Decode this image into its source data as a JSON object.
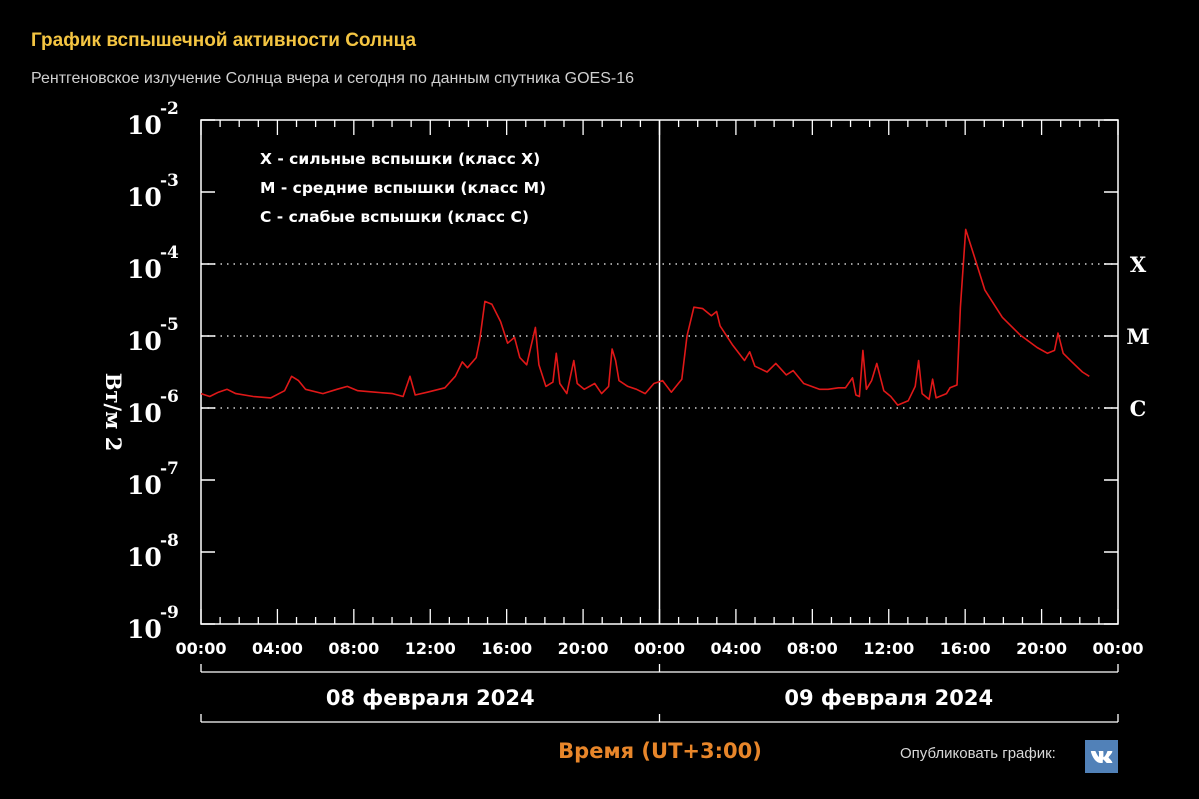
{
  "header": {
    "title": "График вспышечной активности Солнца",
    "subtitle": "Рентгеновское излучение Солнца вчера и сегодня по данным спутника GOES-16"
  },
  "footer": {
    "publish_label": "Опубликовать график:",
    "vk_icon": "vk-icon",
    "vk_color": "#5181b8"
  },
  "chart_data": {
    "type": "line",
    "title": "График вспышечной активности Солнца",
    "subtitle": "Рентгеновское излучение Солнца вчера и сегодня по данным спутника GOES-16",
    "xlabel": "Время (UT+3:00)",
    "ylabel": "Вт/м 2",
    "yscale": "log",
    "ylim": [
      1e-09,
      0.01
    ],
    "xlim_hours": [
      0,
      48
    ],
    "y_ticks": [
      {
        "base": "10",
        "exp": "-2"
      },
      {
        "base": "10",
        "exp": "-3"
      },
      {
        "base": "10",
        "exp": "-4"
      },
      {
        "base": "10",
        "exp": "-5"
      },
      {
        "base": "10",
        "exp": "-6"
      },
      {
        "base": "10",
        "exp": "-7"
      },
      {
        "base": "10",
        "exp": "-8"
      },
      {
        "base": "10",
        "exp": "-9"
      }
    ],
    "x_tick_labels": [
      "00:00",
      "04:00",
      "08:00",
      "12:00",
      "16:00",
      "20:00",
      "00:00",
      "04:00",
      "08:00",
      "12:00",
      "16:00",
      "20:00",
      "00:00"
    ],
    "date_labels": [
      "08 февраля 2024",
      "09 февраля 2024"
    ],
    "class_labels": [
      {
        "label": "X",
        "level": 0.0001
      },
      {
        "label": "M",
        "level": 1e-05
      },
      {
        "label": "C",
        "level": 1e-06
      }
    ],
    "legend": [
      "X  - сильные вспышки (класс X)",
      "M - средние вспышки (класс M)",
      "C  - слабые вспышки (класс C)"
    ],
    "grid": "dotted lines at 1e-4, 1e-5, 1e-6",
    "line_color": "#e01818",
    "axis_color": "#ffffff",
    "xlabel_color": "#e8862a",
    "series": [
      {
        "name": "GOES-16 X-ray flux (W/m²)",
        "hours_log10": [
          [
            0,
            -5.8
          ],
          [
            0.5,
            -5.84
          ],
          [
            1,
            -5.78
          ],
          [
            1.5,
            -5.74
          ],
          [
            2,
            -5.8
          ],
          [
            3,
            -5.84
          ],
          [
            4,
            -5.86
          ],
          [
            4.8,
            -5.76
          ],
          [
            5.2,
            -5.56
          ],
          [
            5.6,
            -5.62
          ],
          [
            6,
            -5.74
          ],
          [
            7,
            -5.8
          ],
          [
            7.8,
            -5.74
          ],
          [
            8.4,
            -5.7
          ],
          [
            9,
            -5.76
          ],
          [
            10,
            -5.78
          ],
          [
            11,
            -5.8
          ],
          [
            11.6,
            -5.84
          ],
          [
            12,
            -5.56
          ],
          [
            12.3,
            -5.82
          ],
          [
            13,
            -5.78
          ],
          [
            14,
            -5.72
          ],
          [
            14.6,
            -5.56
          ],
          [
            15,
            -5.36
          ],
          [
            15.3,
            -5.44
          ],
          [
            15.8,
            -5.3
          ],
          [
            16,
            -5.06
          ],
          [
            16.3,
            -4.52
          ],
          [
            16.7,
            -4.56
          ],
          [
            17.2,
            -4.8
          ],
          [
            17.6,
            -5.1
          ],
          [
            18,
            -5.02
          ],
          [
            18.3,
            -5.3
          ],
          [
            18.7,
            -5.4
          ],
          [
            19.2,
            -4.88
          ],
          [
            19.4,
            -5.4
          ],
          [
            19.8,
            -5.7
          ],
          [
            20.2,
            -5.64
          ],
          [
            20.4,
            -5.24
          ],
          [
            20.6,
            -5.66
          ],
          [
            21,
            -5.8
          ],
          [
            21.4,
            -5.34
          ],
          [
            21.6,
            -5.66
          ],
          [
            22,
            -5.74
          ],
          [
            22.6,
            -5.66
          ],
          [
            23,
            -5.8
          ],
          [
            23.4,
            -5.7
          ],
          [
            23.6,
            -5.18
          ],
          [
            23.8,
            -5.34
          ],
          [
            24,
            -5.62
          ],
          [
            24.5,
            -5.7
          ],
          [
            25,
            -5.74
          ],
          [
            25.5,
            -5.8
          ],
          [
            26,
            -5.66
          ],
          [
            26.5,
            -5.62
          ],
          [
            27,
            -5.78
          ],
          [
            27.6,
            -5.6
          ],
          [
            27.9,
            -5.0
          ],
          [
            28.3,
            -4.6
          ],
          [
            28.8,
            -4.62
          ],
          [
            29.3,
            -4.72
          ],
          [
            29.6,
            -4.66
          ],
          [
            29.8,
            -4.86
          ],
          [
            30.5,
            -5.12
          ],
          [
            31.2,
            -5.34
          ],
          [
            31.5,
            -5.22
          ],
          [
            31.8,
            -5.42
          ],
          [
            32.5,
            -5.5
          ],
          [
            33,
            -5.38
          ],
          [
            33.6,
            -5.54
          ],
          [
            34,
            -5.48
          ],
          [
            34.6,
            -5.66
          ],
          [
            35.5,
            -5.74
          ],
          [
            36,
            -5.74
          ],
          [
            36.6,
            -5.72
          ],
          [
            37,
            -5.72
          ],
          [
            37.4,
            -5.58
          ],
          [
            37.6,
            -5.82
          ],
          [
            37.8,
            -5.84
          ],
          [
            38,
            -5.2
          ],
          [
            38.2,
            -5.74
          ],
          [
            38.5,
            -5.62
          ],
          [
            38.8,
            -5.38
          ],
          [
            39.2,
            -5.76
          ],
          [
            39.6,
            -5.84
          ],
          [
            40,
            -5.96
          ],
          [
            40.6,
            -5.9
          ],
          [
            41,
            -5.7
          ],
          [
            41.2,
            -5.34
          ],
          [
            41.4,
            -5.8
          ],
          [
            41.8,
            -5.88
          ],
          [
            42,
            -5.6
          ],
          [
            42.2,
            -5.86
          ],
          [
            42.8,
            -5.8
          ],
          [
            43,
            -5.72
          ],
          [
            43.4,
            -5.68
          ],
          [
            43.6,
            -4.6
          ],
          [
            43.9,
            -3.52
          ],
          [
            44.4,
            -3.9
          ],
          [
            45,
            -4.36
          ],
          [
            46,
            -4.74
          ],
          [
            47,
            -4.98
          ],
          [
            48,
            -5.16
          ],
          [
            48.6,
            -5.24
          ],
          [
            49,
            -5.2
          ],
          [
            49.2,
            -4.96
          ],
          [
            49.5,
            -5.24
          ],
          [
            50,
            -5.36
          ],
          [
            50.6,
            -5.5
          ],
          [
            51,
            -5.56
          ]
        ]
      }
    ]
  }
}
